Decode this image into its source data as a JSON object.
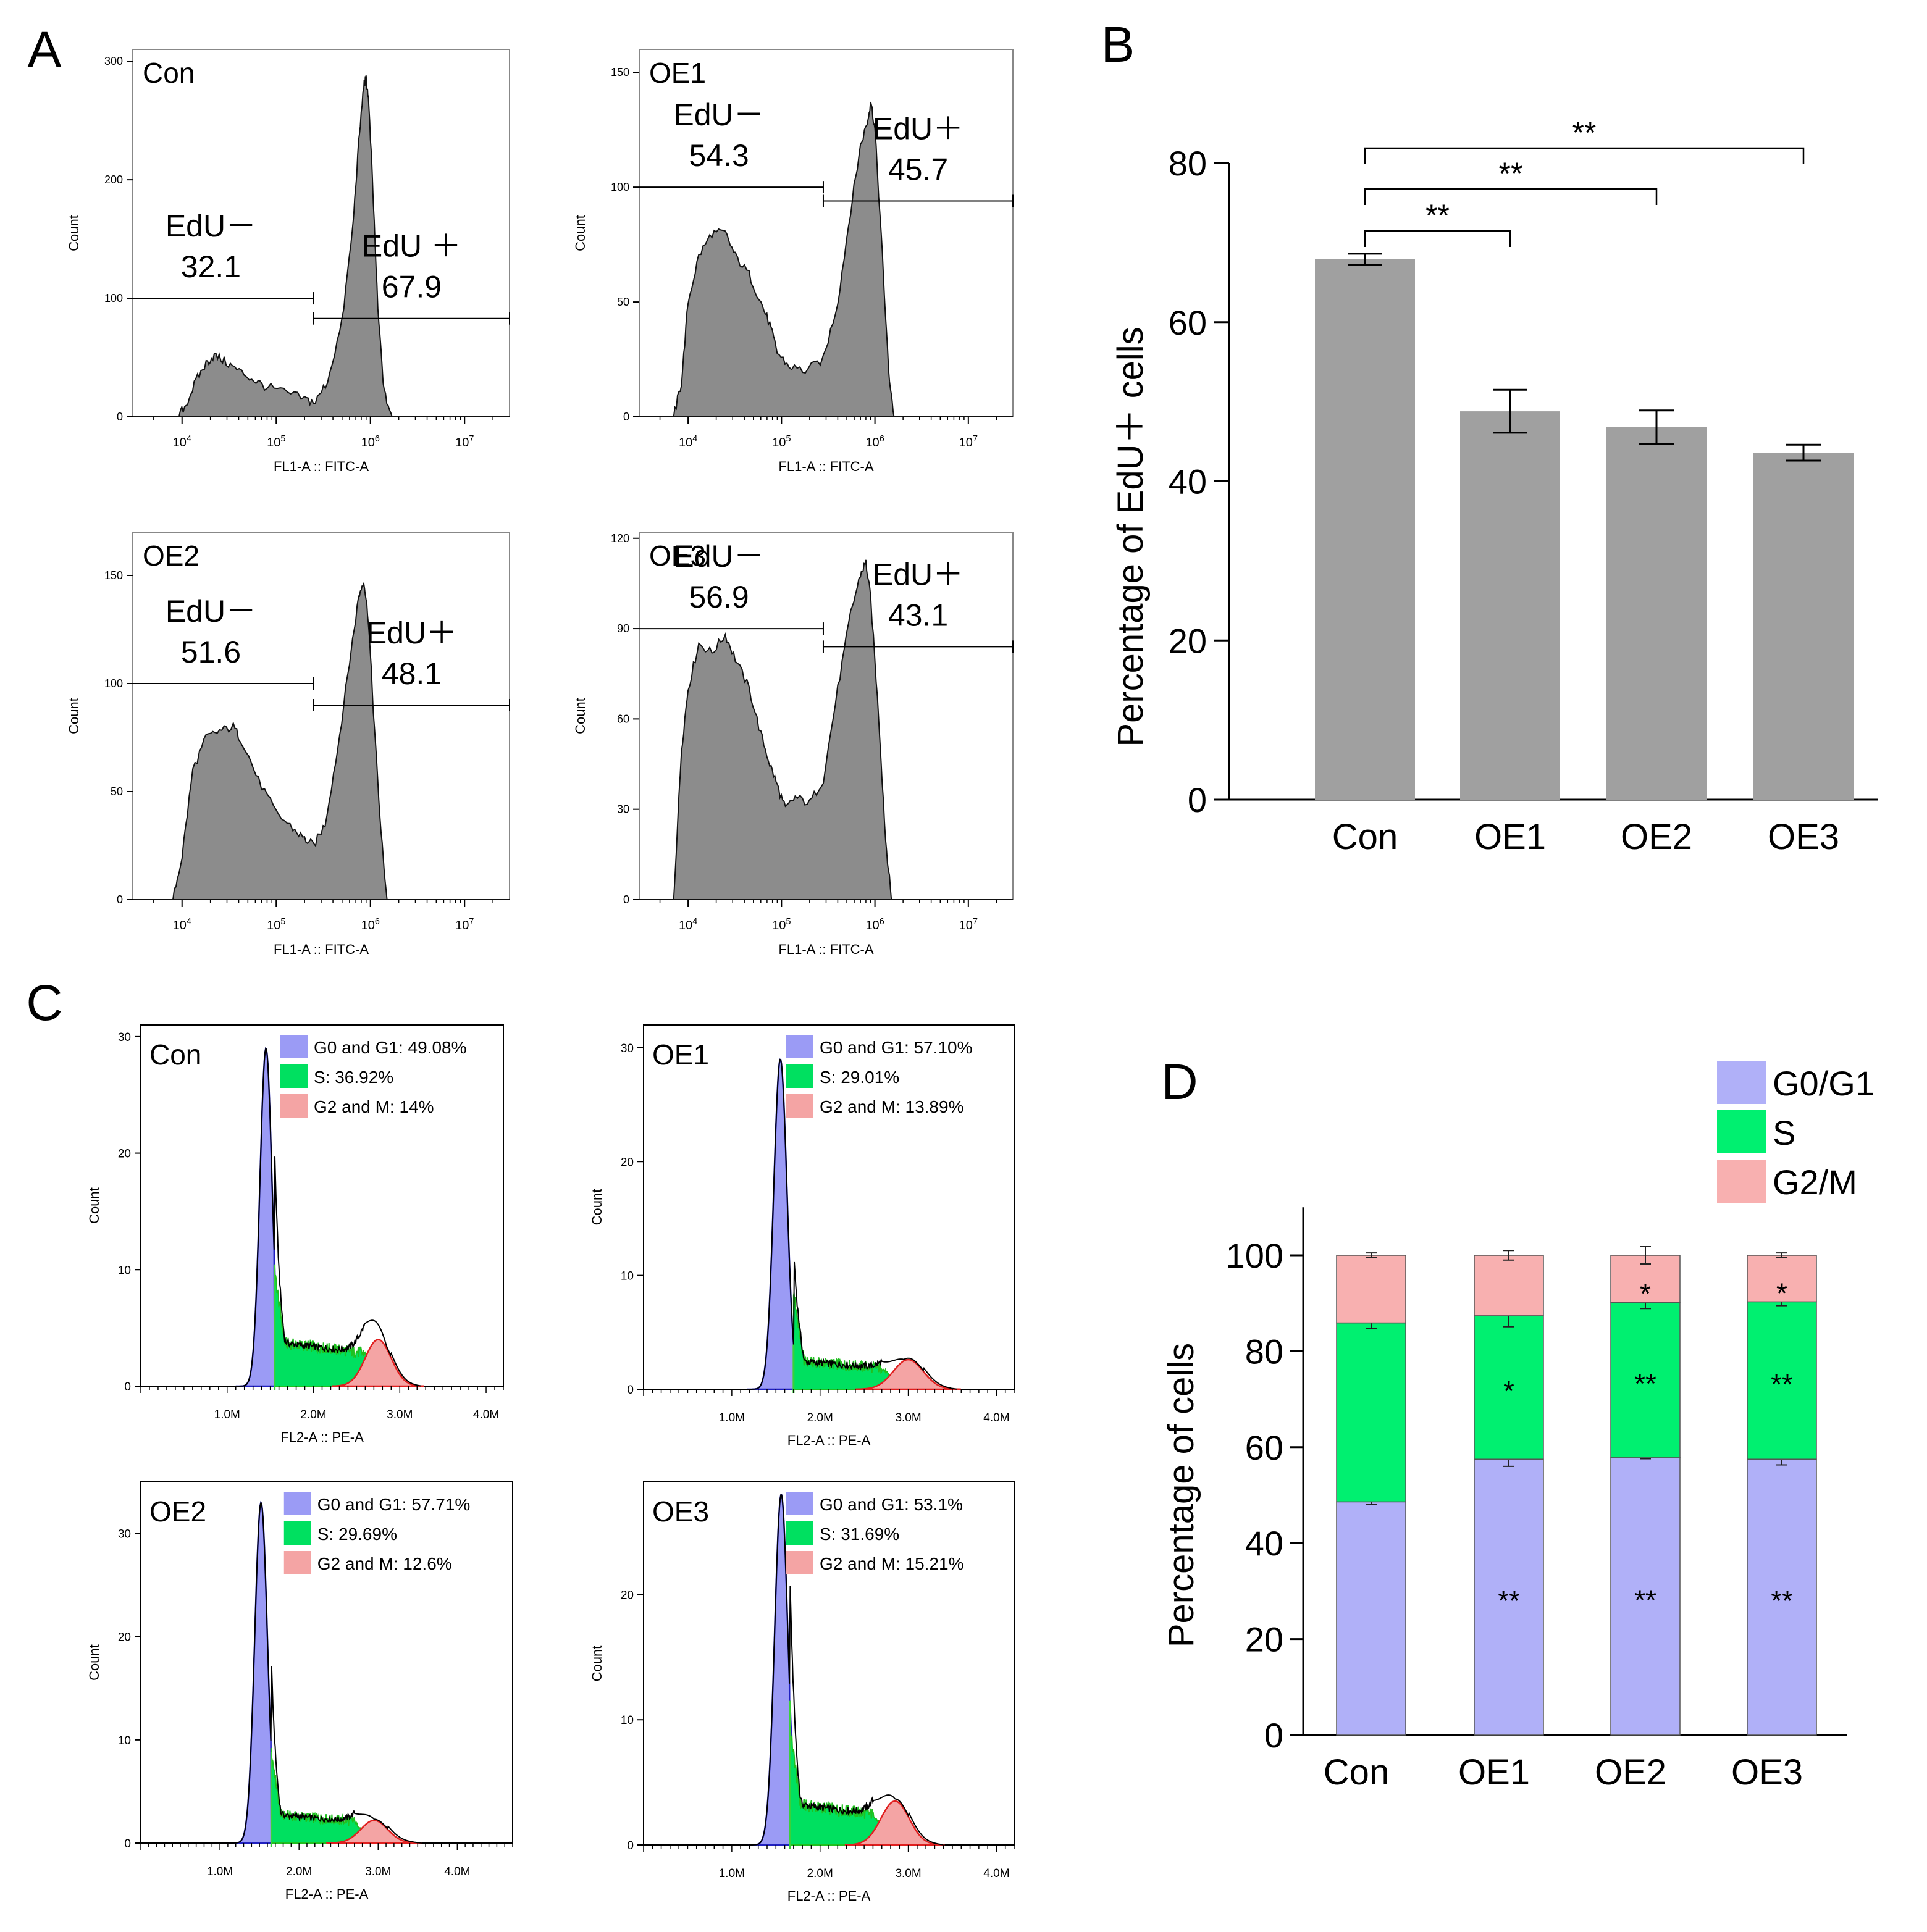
{
  "panel_letters": [
    "A",
    "B",
    "C",
    "D"
  ],
  "chart_data": [
    {
      "type": "area",
      "id": "A-con",
      "panel": "A",
      "subtitle": "Con",
      "xlabel": "FL1-A :: FITC-A",
      "ylabel": "Count",
      "yticks": [
        0,
        100,
        200,
        300
      ],
      "ylim": [
        0,
        310
      ],
      "xscale": "log",
      "xticks": [
        10000,
        100000,
        1000000,
        10000000
      ],
      "xtick_labels": [
        "10^4",
        "10^5",
        "10^6",
        "10^7"
      ],
      "xlim": [
        3000,
        30000000
      ],
      "curve": [
        [
          3000,
          0
        ],
        [
          9000,
          0
        ],
        [
          11000,
          10
        ],
        [
          14000,
          30
        ],
        [
          18000,
          45
        ],
        [
          22000,
          52
        ],
        [
          28000,
          47
        ],
        [
          38000,
          40
        ],
        [
          55000,
          32
        ],
        [
          75000,
          26
        ],
        [
          120000,
          21
        ],
        [
          200000,
          15
        ],
        [
          260000,
          12
        ],
        [
          350000,
          30
        ],
        [
          500000,
          80
        ],
        [
          650000,
          160
        ],
        [
          750000,
          230
        ],
        [
          850000,
          280
        ],
        [
          900000,
          285
        ],
        [
          950000,
          270
        ],
        [
          1050000,
          200
        ],
        [
          1200000,
          90
        ],
        [
          1400000,
          20
        ],
        [
          1700000,
          0
        ],
        [
          30000000,
          0
        ]
      ],
      "gates": [
        {
          "name": "EdU－",
          "value": "32.1",
          "from": 3000,
          "to": 250000,
          "y": 100
        },
        {
          "name": "EdU ＋",
          "value": "67.9",
          "from": 250000,
          "to": 30000000,
          "y": 83
        }
      ]
    },
    {
      "type": "area",
      "id": "A-oe1",
      "panel": "A",
      "subtitle": "OE1",
      "xlabel": "FL1-A :: FITC-A",
      "ylabel": "Count",
      "yticks": [
        0,
        50,
        100,
        150
      ],
      "ylim": [
        0,
        160
      ],
      "xscale": "log",
      "xticks": [
        10000,
        100000,
        1000000,
        10000000
      ],
      "xtick_labels": [
        "10^4",
        "10^5",
        "10^6",
        "10^7"
      ],
      "xlim": [
        3000,
        30000000
      ],
      "curve": [
        [
          3000,
          0
        ],
        [
          7000,
          0
        ],
        [
          8500,
          15
        ],
        [
          10000,
          50
        ],
        [
          13000,
          70
        ],
        [
          18000,
          80
        ],
        [
          25000,
          80
        ],
        [
          32000,
          70
        ],
        [
          45000,
          62
        ],
        [
          60000,
          50
        ],
        [
          75000,
          40
        ],
        [
          90000,
          28
        ],
        [
          120000,
          22
        ],
        [
          180000,
          20
        ],
        [
          280000,
          25
        ],
        [
          400000,
          50
        ],
        [
          550000,
          90
        ],
        [
          700000,
          118
        ],
        [
          850000,
          130
        ],
        [
          900000,
          138
        ],
        [
          1000000,
          125
        ],
        [
          1200000,
          70
        ],
        [
          1400000,
          20
        ],
        [
          1600000,
          0
        ],
        [
          30000000,
          0
        ]
      ],
      "gates": [
        {
          "name": "EdU－",
          "value": "54.3",
          "from": 3000,
          "to": 280000,
          "y": 100
        },
        {
          "name": "EdU＋",
          "value": "45.7",
          "from": 280000,
          "to": 30000000,
          "y": 94
        }
      ]
    },
    {
      "type": "area",
      "id": "A-oe2",
      "panel": "A",
      "subtitle": "OE2",
      "xlabel": "FL1-A :: FITC-A",
      "ylabel": "Count",
      "yticks": [
        0,
        50,
        100,
        150
      ],
      "ylim": [
        0,
        170
      ],
      "xscale": "log",
      "xticks": [
        10000,
        100000,
        1000000,
        10000000
      ],
      "xtick_labels": [
        "10^4",
        "10^5",
        "10^6",
        "10^7"
      ],
      "xlim": [
        3000,
        30000000
      ],
      "curve": [
        [
          3000,
          0
        ],
        [
          8000,
          0
        ],
        [
          10000,
          20
        ],
        [
          13000,
          60
        ],
        [
          18000,
          75
        ],
        [
          25000,
          78
        ],
        [
          35000,
          80
        ],
        [
          45000,
          72
        ],
        [
          65000,
          55
        ],
        [
          100000,
          40
        ],
        [
          150000,
          33
        ],
        [
          200000,
          28
        ],
        [
          250000,
          25
        ],
        [
          330000,
          35
        ],
        [
          450000,
          70
        ],
        [
          600000,
          110
        ],
        [
          750000,
          140
        ],
        [
          850000,
          148
        ],
        [
          950000,
          130
        ],
        [
          1100000,
          80
        ],
        [
          1300000,
          30
        ],
        [
          1500000,
          0
        ],
        [
          30000000,
          0
        ]
      ],
      "gates": [
        {
          "name": "EdU－",
          "value": "51.6",
          "from": 3000,
          "to": 250000,
          "y": 100
        },
        {
          "name": "EdU＋",
          "value": "48.1",
          "from": 250000,
          "to": 30000000,
          "y": 90
        }
      ]
    },
    {
      "type": "area",
      "id": "A-oe3",
      "panel": "A",
      "subtitle": "OE3",
      "xlabel": "FL1-A :: FITC-A",
      "ylabel": "Count",
      "yticks": [
        0,
        30,
        60,
        90,
        120
      ],
      "ylim": [
        0,
        122
      ],
      "xscale": "log",
      "xticks": [
        10000,
        100000,
        1000000,
        10000000
      ],
      "xtick_labels": [
        "10^4",
        "10^5",
        "10^6",
        "10^7"
      ],
      "xlim": [
        3000,
        30000000
      ],
      "curve": [
        [
          3000,
          0
        ],
        [
          7000,
          0
        ],
        [
          8500,
          50
        ],
        [
          10000,
          70
        ],
        [
          13000,
          85
        ],
        [
          18000,
          82
        ],
        [
          25000,
          88
        ],
        [
          32000,
          80
        ],
        [
          45000,
          70
        ],
        [
          60000,
          55
        ],
        [
          75000,
          45
        ],
        [
          90000,
          38
        ],
        [
          110000,
          30
        ],
        [
          140000,
          34
        ],
        [
          200000,
          32
        ],
        [
          280000,
          40
        ],
        [
          400000,
          70
        ],
        [
          550000,
          95
        ],
        [
          700000,
          108
        ],
        [
          800000,
          112
        ],
        [
          900000,
          100
        ],
        [
          1100000,
          60
        ],
        [
          1300000,
          20
        ],
        [
          1500000,
          0
        ],
        [
          30000000,
          0
        ]
      ],
      "gates": [
        {
          "name": "EdU－",
          "value": "56.9",
          "from": 3000,
          "to": 280000,
          "y": 90
        },
        {
          "name": "EdU＋",
          "value": "43.1",
          "from": 280000,
          "to": 30000000,
          "y": 84
        }
      ]
    },
    {
      "type": "bar",
      "id": "B",
      "panel": "B",
      "ylabel": "Percentage of EdU＋ cells",
      "categories": [
        "Con",
        "OE1",
        "OE2",
        "OE3"
      ],
      "values": [
        67.9,
        48.8,
        46.8,
        43.6
      ],
      "errors": [
        0.7,
        2.7,
        2.1,
        1.0
      ],
      "ylim": [
        0,
        80
      ],
      "yticks": [
        0,
        20,
        40,
        60,
        80
      ],
      "bar_color": "#a0a0a0",
      "significance": [
        {
          "from": "Con",
          "to": "OE1",
          "label": "**"
        },
        {
          "from": "Con",
          "to": "OE2",
          "label": "**"
        },
        {
          "from": "Con",
          "to": "OE3",
          "label": "**"
        }
      ]
    },
    {
      "type": "area",
      "id": "C-con",
      "panel": "C",
      "subtitle": "Con",
      "xlabel": "FL2-A :: PE-A",
      "ylabel": "Count",
      "xlim": [
        0,
        4200000
      ],
      "xticks": [
        1000000,
        2000000,
        3000000,
        4000000
      ],
      "xtick_labels": [
        "1.0M",
        "2.0M",
        "3.0M",
        "4.0M"
      ],
      "ylim": [
        0,
        31
      ],
      "yticks": [
        0,
        10,
        20,
        30
      ],
      "legend": [
        {
          "label": "G0 and G1: 49.08%",
          "color": "#9b9bf5"
        },
        {
          "label": "S: 36.92%",
          "color": "#00e060"
        },
        {
          "label": "G2 and M: 14%",
          "color": "#f4a4a4"
        }
      ],
      "g1": {
        "center": 1450000,
        "sd": 70000,
        "peak": 29,
        "edge": 1550000
      },
      "s": {
        "from": 1550000,
        "to": 2600000,
        "level": 3.8
      },
      "g2": {
        "center": 2750000,
        "sd": 150000,
        "peak": 4
      },
      "total_tail": 3250000
    },
    {
      "type": "area",
      "id": "C-oe1",
      "panel": "C",
      "subtitle": "OE1",
      "xlabel": "FL2-A :: PE-A",
      "ylabel": "Count",
      "xlim": [
        0,
        4200000
      ],
      "xticks": [
        1000000,
        2000000,
        3000000,
        4000000
      ],
      "xtick_labels": [
        "1.0M",
        "2.0M",
        "3.0M",
        "4.0M"
      ],
      "ylim": [
        0,
        32
      ],
      "yticks": [
        0,
        10,
        20,
        30
      ],
      "legend": [
        {
          "label": "G0 and G1: 57.10%",
          "color": "#9b9bf5"
        },
        {
          "label": "S: 29.01%",
          "color": "#00e060"
        },
        {
          "label": "G2 and M: 13.89%",
          "color": "#f4a4a4"
        }
      ],
      "g1": {
        "center": 1550000,
        "sd": 75000,
        "peak": 29,
        "edge": 1700000
      },
      "s": {
        "from": 1700000,
        "to": 2700000,
        "level": 2.5
      },
      "g2": {
        "center": 3000000,
        "sd": 170000,
        "peak": 2.6
      },
      "total_tail": 3550000
    },
    {
      "type": "area",
      "id": "C-oe2",
      "panel": "C",
      "subtitle": "OE2",
      "xlabel": "FL2-A :: PE-A",
      "ylabel": "Count",
      "xlim": [
        0,
        4700000
      ],
      "xticks": [
        1000000,
        2000000,
        3000000,
        4000000
      ],
      "xtick_labels": [
        "1.0M",
        "2.0M",
        "3.0M",
        "4.0M"
      ],
      "ylim": [
        0,
        35
      ],
      "yticks": [
        0,
        10,
        20,
        30
      ],
      "legend": [
        {
          "label": "G0 and G1: 57.71%",
          "color": "#9b9bf5"
        },
        {
          "label": "S: 29.69%",
          "color": "#00e060"
        },
        {
          "label": "G2 and M: 12.6%",
          "color": "#f4a4a4"
        }
      ],
      "g1": {
        "center": 1520000,
        "sd": 80000,
        "peak": 33,
        "edge": 1650000
      },
      "s": {
        "from": 1650000,
        "to": 2700000,
        "level": 2.8
      },
      "g2": {
        "center": 2950000,
        "sd": 170000,
        "peak": 2.2
      },
      "total_tail": 3550000
    },
    {
      "type": "area",
      "id": "C-oe3",
      "panel": "C",
      "subtitle": "OE3",
      "xlabel": "FL2-A :: PE-A",
      "ylabel": "Count",
      "xlim": [
        0,
        4200000
      ],
      "xticks": [
        1000000,
        2000000,
        3000000,
        4000000
      ],
      "xtick_labels": [
        "1.0M",
        "2.0M",
        "3.0M",
        "4.0M"
      ],
      "ylim": [
        0,
        29
      ],
      "yticks": [
        0,
        10,
        20
      ],
      "legend": [
        {
          "label": "G0 and G1: 53.1%",
          "color": "#9b9bf5"
        },
        {
          "label": "S: 31.69%",
          "color": "#00e060"
        },
        {
          "label": "G2 and M: 15.21%",
          "color": "#f4a4a4"
        }
      ],
      "g1": {
        "center": 1560000,
        "sd": 75000,
        "peak": 28,
        "edge": 1660000
      },
      "s": {
        "from": 1660000,
        "to": 2600000,
        "level": 3.3
      },
      "g2": {
        "center": 2850000,
        "sd": 160000,
        "peak": 3.5
      },
      "total_tail": 3400000
    },
    {
      "type": "bar",
      "stacked": true,
      "id": "D",
      "panel": "D",
      "ylabel": "Percentage of cells",
      "categories": [
        "Con",
        "OE1",
        "OE2",
        "OE3"
      ],
      "ylim": [
        0,
        110
      ],
      "yticks": [
        0,
        20,
        40,
        60,
        80,
        100
      ],
      "legend": [
        "G0/G1",
        "S",
        "G2/M"
      ],
      "series": [
        {
          "name": "G0/G1",
          "color": "#b0b0f8",
          "values": [
            48.6,
            57.5,
            57.8,
            57.5
          ],
          "errors": [
            0.6,
            1.5,
            0.2,
            1.2
          ],
          "stars": [
            "",
            "**",
            "**",
            "**"
          ]
        },
        {
          "name": "S",
          "color": "#00f070",
          "values": [
            37.3,
            29.9,
            32.4,
            32.8
          ],
          "errors": [
            1.2,
            2.3,
            1.3,
            0.8
          ],
          "stars": [
            "",
            "*",
            "**",
            "**"
          ]
        },
        {
          "name": "G2/M",
          "color": "#f8b0b0",
          "values": [
            14.1,
            12.6,
            9.8,
            9.7
          ],
          "errors": [
            0.5,
            1.0,
            1.8,
            0.5
          ],
          "stars": [
            "",
            "",
            "*",
            "*"
          ]
        }
      ]
    }
  ]
}
